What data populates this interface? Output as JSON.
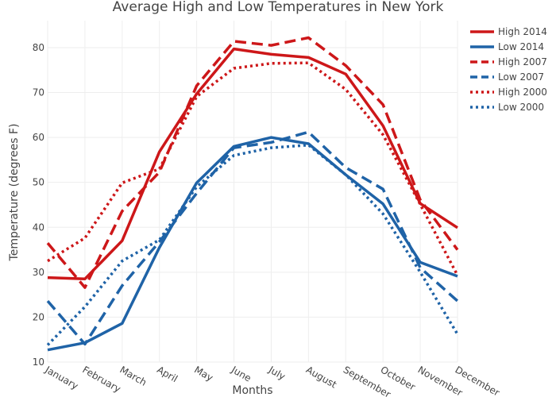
{
  "chart_data": {
    "type": "line",
    "title": "Average High and Low Temperatures in New York",
    "xlabel": "Months",
    "ylabel": "Temperature (degrees F)",
    "categories": [
      "January",
      "February",
      "March",
      "April",
      "May",
      "June",
      "July",
      "August",
      "September",
      "October",
      "November",
      "December"
    ],
    "ylim": [
      10,
      86
    ],
    "yticks": [
      10,
      20,
      30,
      40,
      50,
      60,
      70,
      80
    ],
    "grid": true,
    "legend_position": "top-right",
    "series": [
      {
        "name": "High 2014",
        "color": "#cd1719",
        "dash": "solid",
        "values": [
          28.8,
          28.5,
          37.0,
          56.8,
          69.7,
          79.7,
          78.5,
          77.8,
          74.1,
          62.6,
          45.3,
          39.9
        ]
      },
      {
        "name": "Low 2014",
        "color": "#1f63a7",
        "dash": "solid",
        "values": [
          12.7,
          14.3,
          18.6,
          35.5,
          49.9,
          58.0,
          60.0,
          58.6,
          51.7,
          45.2,
          32.2,
          29.1
        ]
      },
      {
        "name": "High 2007",
        "color": "#cd1719",
        "dash": "dash",
        "values": [
          36.5,
          26.6,
          43.6,
          52.3,
          71.5,
          81.4,
          80.5,
          82.2,
          76.0,
          67.3,
          46.1,
          35.0
        ]
      },
      {
        "name": "Low 2007",
        "color": "#1f63a7",
        "dash": "dash",
        "values": [
          23.6,
          14.0,
          27.0,
          36.8,
          47.6,
          57.7,
          58.9,
          61.2,
          53.3,
          48.5,
          31.0,
          23.6
        ]
      },
      {
        "name": "High 2000",
        "color": "#cd1719",
        "dash": "dot",
        "values": [
          32.5,
          37.6,
          49.9,
          53.0,
          69.1,
          75.4,
          76.5,
          76.6,
          70.7,
          60.6,
          45.1,
          29.3
        ]
      },
      {
        "name": "Low 2000",
        "color": "#1f63a7",
        "dash": "dot",
        "values": [
          13.8,
          22.3,
          32.5,
          37.2,
          49.0,
          56.0,
          57.7,
          58.3,
          51.7,
          43.0,
          30.0,
          16.2
        ]
      }
    ]
  }
}
